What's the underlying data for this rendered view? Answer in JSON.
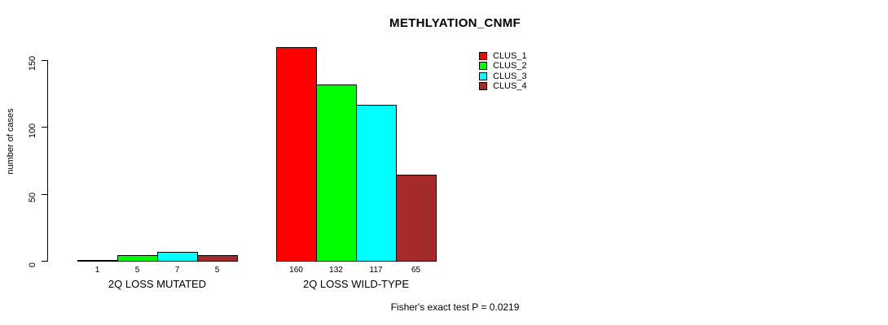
{
  "title": "METHLYATION_CNMF",
  "footer": "Fisher's exact test P = 0.0219",
  "colors": {
    "clus1": "#FF0000",
    "clus2": "#00FF00",
    "clus3": "#00FFFF",
    "clus4": "#A52A2A",
    "axis": "#000000",
    "background": "#FFFFFF"
  },
  "legend": {
    "position": "top-right",
    "entries": [
      {
        "label": "CLUS_1",
        "color": "#FF0000"
      },
      {
        "label": "CLUS_2",
        "color": "#00FF00"
      },
      {
        "label": "CLUS_3",
        "color": "#00FFFF"
      },
      {
        "label": "CLUS_4",
        "color": "#A52A2A"
      }
    ]
  },
  "chart_data": {
    "type": "bar",
    "title": "METHLYATION_CNMF",
    "xlabel": "",
    "ylabel": "number of cases",
    "ylim": [
      0,
      150
    ],
    "yticks": [
      0,
      50,
      100,
      150
    ],
    "grid": false,
    "legend_position": "top-right",
    "bar_value_labels_shown": true,
    "annotation": "Fisher's exact test P = 0.0219",
    "groups": [
      "2Q LOSS MUTATED",
      "2Q LOSS WILD-TYPE"
    ],
    "series": [
      {
        "name": "CLUS_1",
        "color": "#FF0000",
        "values": [
          1,
          160
        ]
      },
      {
        "name": "CLUS_2",
        "color": "#00FF00",
        "values": [
          5,
          132
        ]
      },
      {
        "name": "CLUS_3",
        "color": "#00FFFF",
        "values": [
          7,
          117
        ]
      },
      {
        "name": "CLUS_4",
        "color": "#A52A2A",
        "values": [
          5,
          65
        ]
      }
    ]
  }
}
